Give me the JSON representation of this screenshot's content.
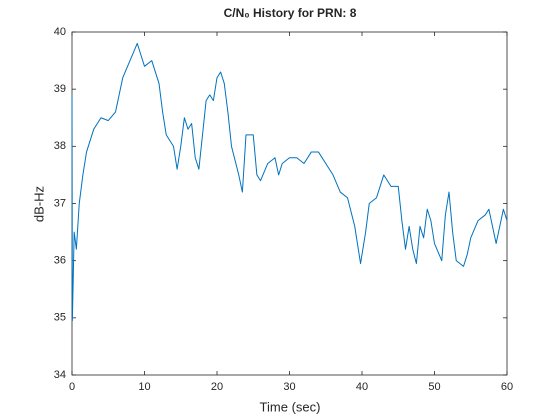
{
  "chart_data": {
    "type": "line",
    "title": "C/N₀ History for PRN: 8",
    "xlabel": "Time (sec)",
    "ylabel": "dB-Hz",
    "x": [
      0,
      0.05,
      0.3,
      0.6,
      1,
      1.5,
      2,
      3,
      4,
      5,
      6,
      7,
      8,
      9,
      9.5,
      10,
      11,
      12,
      12.5,
      13,
      14,
      14.5,
      15,
      15.5,
      16,
      16.5,
      17,
      17.5,
      18,
      18.5,
      19,
      19.5,
      20,
      20.5,
      21,
      21.5,
      22,
      23,
      23.5,
      24,
      25,
      25.5,
      26,
      27,
      28,
      28.5,
      29,
      30,
      31,
      32,
      33,
      34,
      35,
      36,
      37,
      38,
      39,
      39.8,
      40.5,
      41,
      42,
      43,
      44,
      45,
      45.5,
      46,
      46.5,
      47,
      47.5,
      48,
      48.5,
      49,
      49.5,
      50,
      51,
      51.5,
      52,
      52.5,
      53,
      54,
      54.5,
      55,
      56,
      57,
      57.5,
      58,
      58.5,
      59,
      59.5,
      60
    ],
    "series": [
      {
        "name": "C/N0",
        "color": "#0072bd",
        "values": [
          38.9,
          34.95,
          36.5,
          36.2,
          37,
          37.5,
          37.9,
          38.3,
          38.5,
          38.45,
          38.6,
          39.2,
          39.5,
          39.8,
          39.6,
          39.4,
          39.5,
          39.1,
          38.6,
          38.2,
          38.0,
          37.6,
          38.0,
          38.5,
          38.3,
          38.4,
          37.8,
          37.6,
          38.2,
          38.8,
          38.9,
          38.8,
          39.2,
          39.3,
          39.1,
          38.6,
          38.0,
          37.5,
          37.2,
          38.2,
          38.2,
          37.5,
          37.4,
          37.7,
          37.8,
          37.5,
          37.7,
          37.8,
          37.8,
          37.7,
          37.9,
          37.9,
          37.7,
          37.5,
          37.2,
          37.1,
          36.6,
          35.95,
          36.5,
          37.0,
          37.1,
          37.5,
          37.3,
          37.3,
          36.7,
          36.2,
          36.6,
          36.2,
          35.95,
          36.6,
          36.4,
          36.9,
          36.7,
          36.3,
          36.0,
          36.8,
          37.2,
          36.5,
          36.0,
          35.9,
          36.1,
          36.4,
          36.7,
          36.8,
          36.9,
          36.6,
          36.3,
          36.6,
          36.9,
          36.7
        ]
      }
    ],
    "xlim": [
      0,
      60
    ],
    "xticks": [
      0,
      10,
      20,
      30,
      40,
      50,
      60
    ],
    "ylim": [
      34,
      40
    ],
    "yticks": [
      34,
      35,
      36,
      37,
      38,
      39,
      40
    ]
  }
}
